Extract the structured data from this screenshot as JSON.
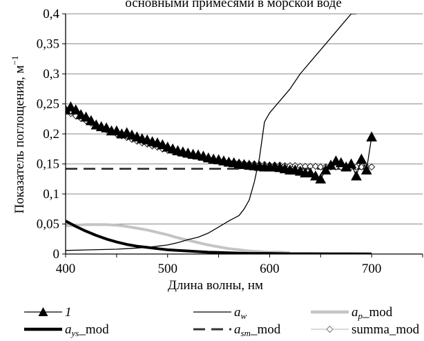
{
  "chart_data": {
    "type": "line",
    "title": "основными примесями в морской воде",
    "xlabel": "Длина волны, нм",
    "ylabel_main": "Показатель поглощения, м",
    "ylabel_sup": "−1",
    "xlim": [
      400,
      750
    ],
    "ylim": [
      0,
      0.4
    ],
    "x_ticks": [
      "400",
      "500",
      "600",
      "700"
    ],
    "y_ticks": [
      "0",
      "0,05",
      "0,1",
      "0,15",
      "0,2",
      "0,25",
      "0,3",
      "0,35",
      "0,4"
    ],
    "grid": "horizontal",
    "legend_position": "bottom",
    "series": [
      {
        "name": "1",
        "color": "#000000",
        "marker": "triangle",
        "x": [
          400,
          405,
          410,
          415,
          420,
          425,
          430,
          435,
          440,
          445,
          450,
          455,
          460,
          465,
          470,
          475,
          480,
          485,
          490,
          495,
          500,
          505,
          510,
          515,
          520,
          525,
          530,
          535,
          540,
          545,
          550,
          555,
          560,
          565,
          570,
          575,
          580,
          585,
          590,
          595,
          600,
          605,
          610,
          615,
          620,
          625,
          630,
          635,
          640,
          645,
          650,
          655,
          660,
          665,
          670,
          675,
          680,
          685,
          690,
          695,
          700
        ],
        "y": [
          0.24,
          0.245,
          0.24,
          0.232,
          0.228,
          0.222,
          0.215,
          0.212,
          0.21,
          0.205,
          0.205,
          0.2,
          0.202,
          0.198,
          0.195,
          0.192,
          0.19,
          0.187,
          0.185,
          0.182,
          0.178,
          0.175,
          0.172,
          0.17,
          0.168,
          0.166,
          0.165,
          0.163,
          0.16,
          0.158,
          0.157,
          0.155,
          0.153,
          0.152,
          0.15,
          0.149,
          0.148,
          0.147,
          0.146,
          0.145,
          0.145,
          0.145,
          0.144,
          0.142,
          0.14,
          0.14,
          0.138,
          0.135,
          0.135,
          0.13,
          0.125,
          0.14,
          0.148,
          0.155,
          0.152,
          0.145,
          0.15,
          0.13,
          0.158,
          0.14,
          0.195
        ]
      },
      {
        "name": "a_w",
        "legend_main": "a",
        "legend_sub": "w",
        "color": "#000000",
        "x": [
          400,
          450,
          460,
          470,
          480,
          490,
          500,
          510,
          520,
          530,
          540,
          550,
          560,
          570,
          575,
          580,
          585,
          590,
          595,
          600,
          610,
          620,
          630,
          640,
          650,
          660,
          670,
          680,
          685
        ],
        "y": [
          0.006,
          0.008,
          0.009,
          0.01,
          0.011,
          0.013,
          0.015,
          0.019,
          0.024,
          0.028,
          0.035,
          0.045,
          0.055,
          0.064,
          0.075,
          0.09,
          0.12,
          0.16,
          0.22,
          0.235,
          0.255,
          0.275,
          0.3,
          0.32,
          0.34,
          0.36,
          0.38,
          0.4,
          0.41
        ]
      },
      {
        "name": "a_p_mod",
        "legend_main": "a",
        "legend_sub": "p",
        "legend_suffix": "_mod",
        "color": "#c4c4c4",
        "x": [
          400,
          410,
          420,
          430,
          440,
          450,
          460,
          470,
          480,
          490,
          500,
          510,
          520,
          530,
          540,
          550,
          560,
          570,
          580,
          590,
          600,
          610,
          620
        ],
        "y": [
          0.047,
          0.048,
          0.049,
          0.049,
          0.049,
          0.048,
          0.046,
          0.043,
          0.04,
          0.036,
          0.032,
          0.027,
          0.023,
          0.019,
          0.015,
          0.012,
          0.009,
          0.007,
          0.005,
          0.004,
          0.003,
          0.003,
          0.002
        ]
      },
      {
        "name": "a_ys_mod",
        "legend_main": "a",
        "legend_sub": "ys",
        "legend_suffix": "_mod",
        "color": "#000000",
        "x": [
          400,
          410,
          420,
          430,
          440,
          450,
          460,
          470,
          480,
          490,
          500,
          510,
          520,
          530,
          540,
          550,
          560,
          570,
          580,
          590,
          600,
          620,
          640,
          660,
          680,
          700
        ],
        "y": [
          0.055,
          0.046,
          0.038,
          0.031,
          0.025,
          0.02,
          0.016,
          0.013,
          0.011,
          0.009,
          0.007,
          0.006,
          0.005,
          0.004,
          0.003,
          0.0025,
          0.002,
          0.0015,
          0.001,
          0.001,
          0.001,
          0.0005,
          0.0005,
          0.0003,
          0.0002,
          0.0001
        ]
      },
      {
        "name": "a_sm_mod",
        "legend_main": "a",
        "legend_sub": "sm",
        "legend_suffix": "_mod",
        "color": "#333333",
        "dashed": true,
        "x": [
          400,
          700
        ],
        "y": [
          0.142,
          0.142
        ]
      },
      {
        "name": "summa_mod",
        "color": "#c4c4c4",
        "marker": "diamond",
        "x": [
          400,
          405,
          410,
          415,
          420,
          425,
          430,
          435,
          440,
          445,
          450,
          455,
          460,
          465,
          470,
          475,
          480,
          485,
          490,
          495,
          500,
          505,
          510,
          515,
          520,
          525,
          530,
          535,
          540,
          545,
          550,
          555,
          560,
          565,
          570,
          575,
          580,
          585,
          590,
          595,
          600,
          605,
          610,
          615,
          620,
          625,
          630,
          635,
          640,
          645,
          650,
          655,
          660,
          665,
          670,
          675,
          680,
          685,
          690,
          695,
          700
        ],
        "y": [
          0.238,
          0.234,
          0.23,
          0.226,
          0.222,
          0.218,
          0.214,
          0.21,
          0.207,
          0.204,
          0.2,
          0.197,
          0.194,
          0.191,
          0.188,
          0.185,
          0.183,
          0.18,
          0.178,
          0.175,
          0.173,
          0.171,
          0.169,
          0.167,
          0.165,
          0.163,
          0.162,
          0.16,
          0.158,
          0.157,
          0.156,
          0.155,
          0.154,
          0.153,
          0.152,
          0.151,
          0.15,
          0.15,
          0.149,
          0.149,
          0.148,
          0.148,
          0.148,
          0.147,
          0.147,
          0.147,
          0.146,
          0.146,
          0.146,
          0.146,
          0.145,
          0.145,
          0.145,
          0.145,
          0.145,
          0.145,
          0.145,
          0.145,
          0.145,
          0.145,
          0.145
        ]
      }
    ]
  }
}
